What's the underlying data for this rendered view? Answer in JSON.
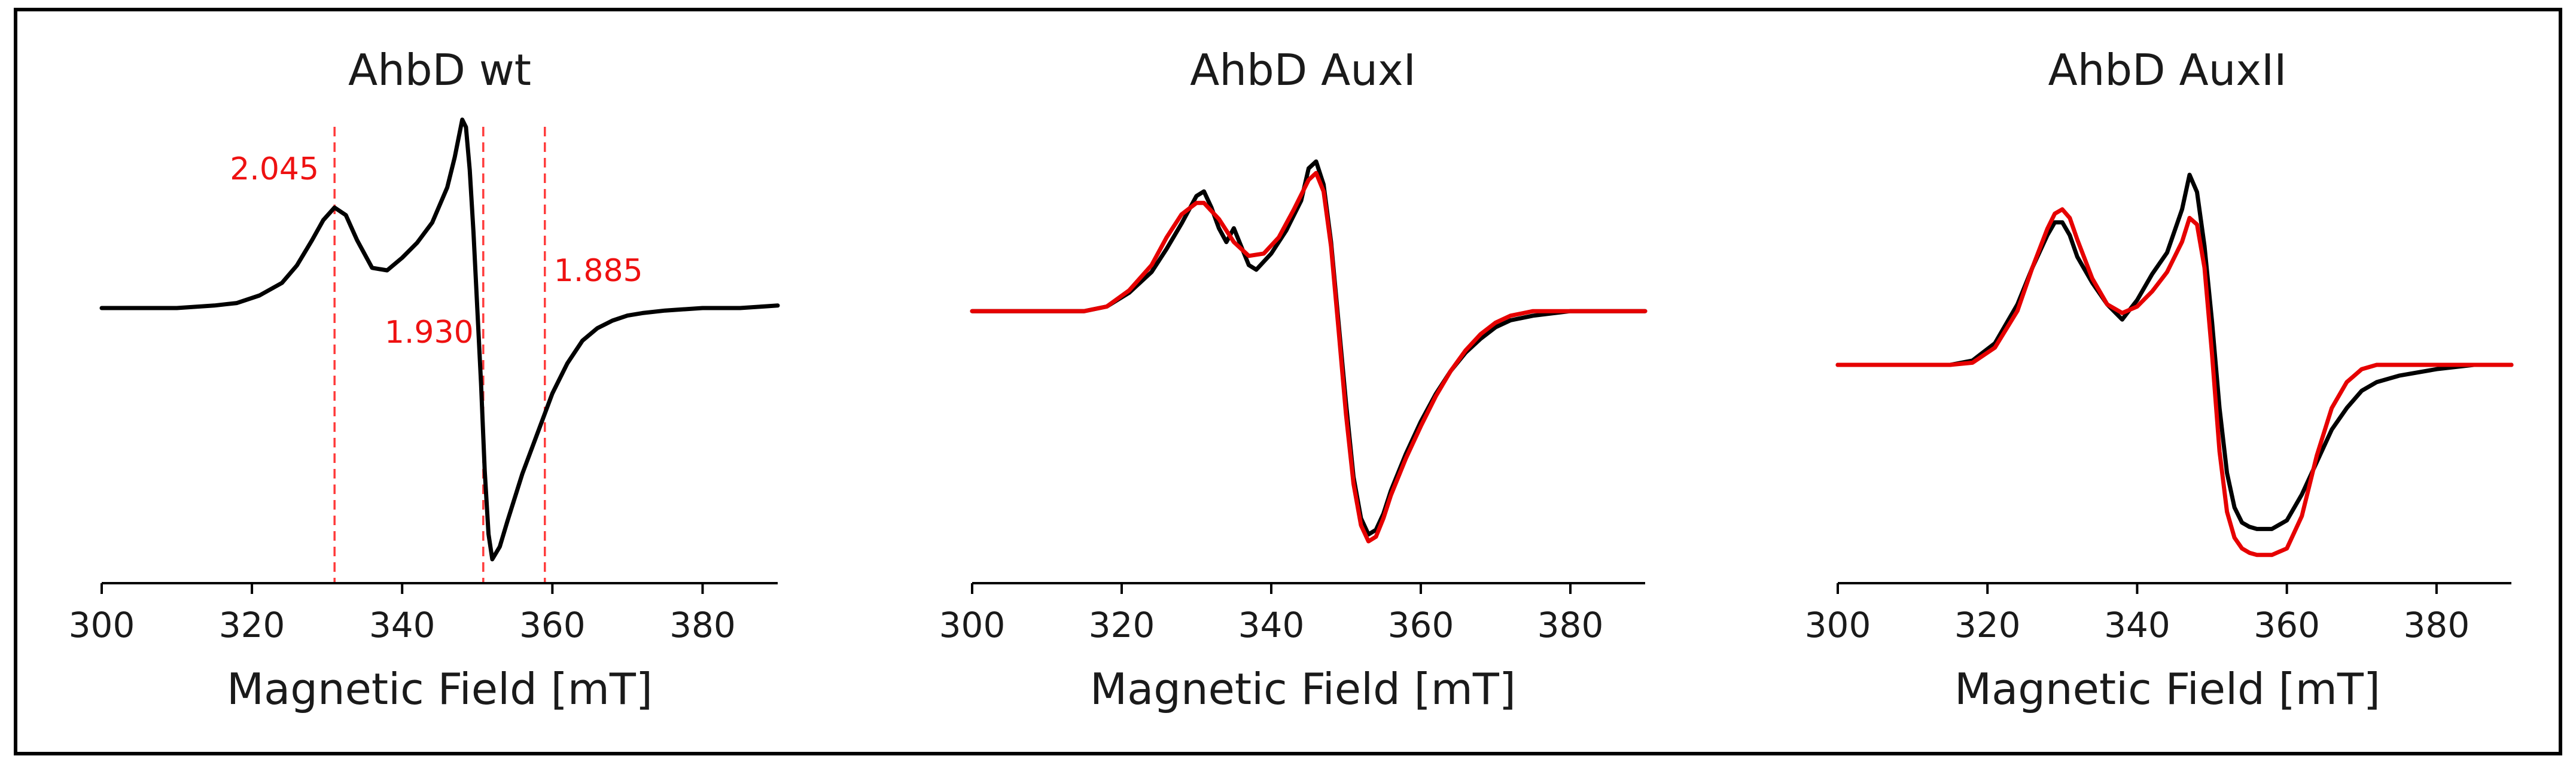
{
  "chart_data": [
    {
      "type": "line",
      "title": "AhbD wt",
      "xlabel": "Magnetic Field [mT]",
      "ylabel": "",
      "xlim": [
        300,
        390
      ],
      "xticks": [
        "300",
        "320",
        "340",
        "360",
        "380"
      ],
      "ylim": [
        -1.0,
        0.75
      ],
      "grid": false,
      "annotations": [
        {
          "label": "2.045",
          "x": 331
        },
        {
          "label": "1.930",
          "x": 350.8
        },
        {
          "label": "1.885",
          "x": 359
        }
      ],
      "series": [
        {
          "color": "#000000",
          "x": [
            300,
            305,
            310,
            315,
            318,
            321,
            324,
            326,
            328,
            329.5,
            331,
            332.5,
            334,
            336,
            338,
            340,
            342,
            344,
            346,
            347,
            348,
            348.5,
            349,
            349.5,
            350,
            350.5,
            351,
            351.5,
            352,
            353,
            354,
            356,
            358,
            360,
            362,
            364,
            366,
            368,
            370,
            372,
            375,
            380,
            385,
            390
          ],
          "values": [
            0.0,
            0.0,
            0.0,
            0.01,
            0.02,
            0.05,
            0.1,
            0.17,
            0.27,
            0.35,
            0.4,
            0.37,
            0.27,
            0.16,
            0.15,
            0.2,
            0.26,
            0.34,
            0.48,
            0.6,
            0.75,
            0.72,
            0.55,
            0.3,
            0.0,
            -0.3,
            -0.65,
            -0.9,
            -1.0,
            -0.95,
            -0.85,
            -0.66,
            -0.5,
            -0.34,
            -0.22,
            -0.13,
            -0.08,
            -0.05,
            -0.03,
            -0.02,
            -0.01,
            0.0,
            0.0,
            0.01
          ]
        }
      ]
    },
    {
      "type": "line",
      "title": "AhbD AuxI",
      "xlabel": "Magnetic Field [mT]",
      "ylabel": "",
      "xlim": [
        300,
        390
      ],
      "xticks": [
        "300",
        "320",
        "340",
        "360",
        "380"
      ],
      "ylim": [
        -1.0,
        0.65
      ],
      "grid": false,
      "series": [
        {
          "color": "#000000",
          "x": [
            300,
            305,
            310,
            315,
            318,
            321,
            324,
            326,
            328,
            330,
            331,
            332,
            333,
            334,
            335,
            336,
            337,
            338,
            340,
            342,
            344,
            345,
            346,
            347,
            348,
            349,
            350,
            351,
            352,
            353,
            354,
            355,
            356,
            358,
            360,
            362,
            364,
            366,
            368,
            370,
            372,
            375,
            380,
            385,
            390
          ],
          "values": [
            0.0,
            0.0,
            0.0,
            0.0,
            0.02,
            0.08,
            0.17,
            0.27,
            0.38,
            0.5,
            0.52,
            0.45,
            0.36,
            0.3,
            0.36,
            0.28,
            0.2,
            0.18,
            0.25,
            0.35,
            0.48,
            0.62,
            0.65,
            0.55,
            0.3,
            -0.05,
            -0.4,
            -0.72,
            -0.9,
            -0.97,
            -0.95,
            -0.88,
            -0.78,
            -0.62,
            -0.48,
            -0.36,
            -0.26,
            -0.18,
            -0.12,
            -0.07,
            -0.04,
            -0.02,
            0.0,
            0.0,
            0.0
          ]
        },
        {
          "color": "#e60000",
          "x": [
            300,
            305,
            310,
            315,
            318,
            321,
            324,
            326,
            328,
            330,
            331,
            333,
            335,
            337,
            339,
            341,
            343,
            345,
            346,
            347,
            348,
            349,
            350,
            351,
            352,
            353,
            354,
            355,
            356,
            358,
            360,
            362,
            364,
            366,
            368,
            370,
            372,
            375,
            380,
            385,
            390
          ],
          "values": [
            0.0,
            0.0,
            0.0,
            0.0,
            0.02,
            0.09,
            0.2,
            0.32,
            0.42,
            0.47,
            0.47,
            0.4,
            0.3,
            0.24,
            0.25,
            0.32,
            0.44,
            0.57,
            0.6,
            0.52,
            0.28,
            -0.08,
            -0.45,
            -0.75,
            -0.93,
            -1.0,
            -0.98,
            -0.9,
            -0.8,
            -0.64,
            -0.5,
            -0.37,
            -0.26,
            -0.17,
            -0.1,
            -0.05,
            -0.02,
            0.0,
            0.0,
            0.0,
            0.0
          ]
        }
      ]
    },
    {
      "type": "line",
      "title": "AhbD AuxII",
      "xlabel": "Magnetic Field [mT]",
      "ylabel": "",
      "xlim": [
        300,
        390
      ],
      "xticks": [
        "300",
        "320",
        "340",
        "360",
        "380"
      ],
      "ylim": [
        -0.9,
        0.9
      ],
      "grid": false,
      "series": [
        {
          "color": "#000000",
          "x": [
            300,
            305,
            310,
            315,
            318,
            321,
            324,
            326,
            328,
            329,
            330,
            331,
            332,
            334,
            336,
            338,
            340,
            342,
            344,
            346,
            347,
            348,
            349,
            350,
            351,
            352,
            353,
            354,
            355,
            356,
            358,
            360,
            362,
            364,
            366,
            368,
            370,
            372,
            375,
            380,
            385,
            390
          ],
          "values": [
            0.0,
            0.0,
            0.0,
            0.0,
            0.02,
            0.1,
            0.28,
            0.45,
            0.6,
            0.66,
            0.66,
            0.6,
            0.5,
            0.38,
            0.28,
            0.21,
            0.3,
            0.42,
            0.52,
            0.72,
            0.88,
            0.8,
            0.55,
            0.2,
            -0.2,
            -0.5,
            -0.66,
            -0.73,
            -0.75,
            -0.76,
            -0.76,
            -0.72,
            -0.6,
            -0.45,
            -0.3,
            -0.2,
            -0.12,
            -0.08,
            -0.05,
            -0.02,
            0.0,
            0.0
          ]
        },
        {
          "color": "#e60000",
          "x": [
            300,
            305,
            310,
            315,
            318,
            321,
            324,
            326,
            328,
            329,
            330,
            331,
            332,
            334,
            336,
            338,
            340,
            342,
            344,
            346,
            347,
            348,
            349,
            350,
            351,
            352,
            353,
            354,
            355,
            356,
            358,
            360,
            362,
            364,
            366,
            368,
            370,
            372,
            375,
            380,
            385,
            390
          ],
          "values": [
            0.0,
            0.0,
            0.0,
            0.0,
            0.01,
            0.08,
            0.25,
            0.45,
            0.63,
            0.7,
            0.72,
            0.68,
            0.58,
            0.4,
            0.28,
            0.24,
            0.27,
            0.34,
            0.43,
            0.57,
            0.68,
            0.65,
            0.45,
            0.05,
            -0.4,
            -0.68,
            -0.8,
            -0.85,
            -0.87,
            -0.88,
            -0.88,
            -0.85,
            -0.7,
            -0.42,
            -0.2,
            -0.08,
            -0.02,
            0.0,
            0.0,
            0.0,
            0.0,
            0.0
          ]
        }
      ]
    }
  ]
}
